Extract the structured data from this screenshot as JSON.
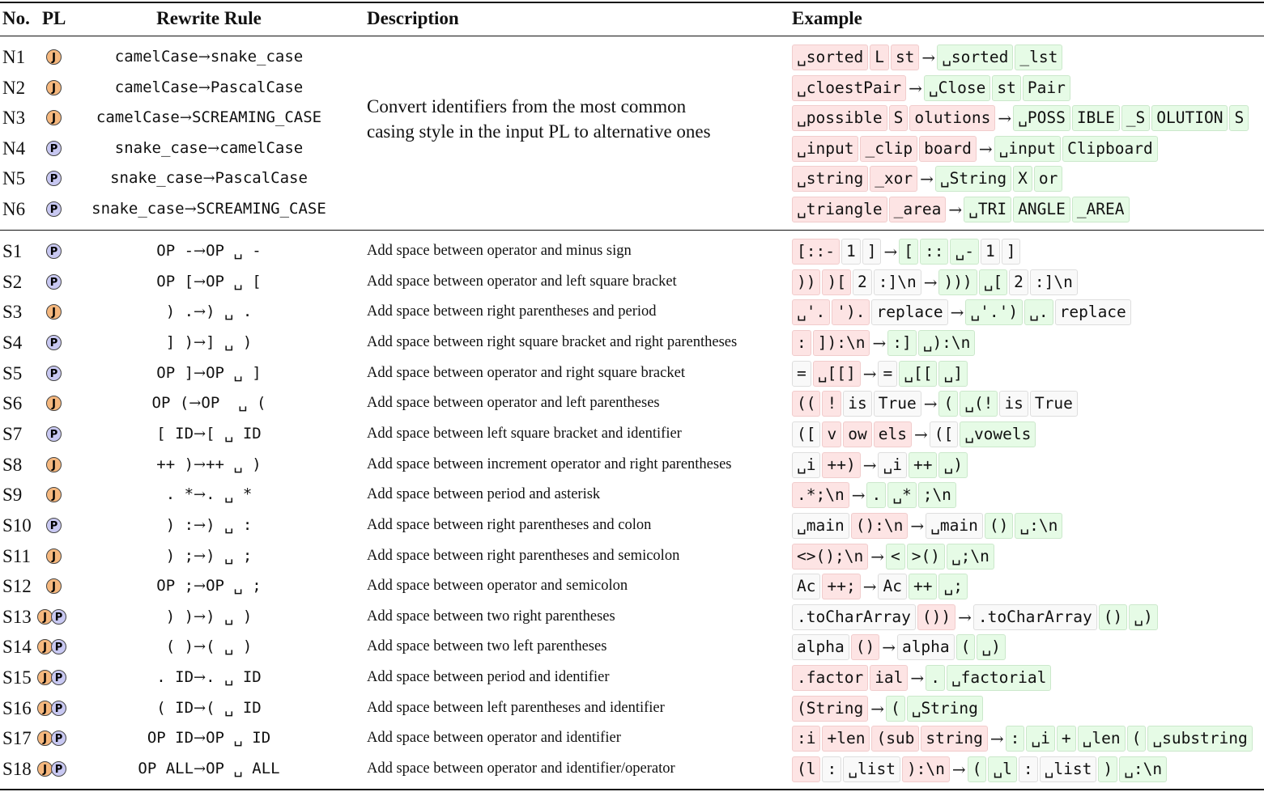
{
  "header": {
    "no": "No.",
    "pl": "PL",
    "rule": "Rewrite Rule",
    "description": "Description",
    "example": "Example"
  },
  "naming_description": "Convert identifiers from the most common casing style in the input PL to alternative ones",
  "naming_description_lines": [
    "Convert identifiers from the most common",
    "casing style in the input PL to alternative ones"
  ],
  "arrow": "→",
  "badges": {
    "J": "J",
    "P": "P",
    "J_color": "#f5b77d",
    "P_color": "#c8c8f2"
  },
  "token_colors": {
    "removed": "#fde4e4",
    "added": "#e6fbe6",
    "unchanged": "#f9f9f9"
  },
  "naming_rules": [
    {
      "no": "N1",
      "pl": [
        "J"
      ],
      "lhs": "camelCase",
      "rhs": "snake_case",
      "before": [
        [
          "r",
          "␣sorted"
        ],
        [
          "r",
          "L"
        ],
        [
          "r",
          "st"
        ]
      ],
      "after": [
        [
          "g",
          "␣sorted"
        ],
        [
          "g",
          "_lst"
        ]
      ]
    },
    {
      "no": "N2",
      "pl": [
        "J"
      ],
      "lhs": "camelCase",
      "rhs": "PascalCase",
      "before": [
        [
          "r",
          "␣cloestPair"
        ]
      ],
      "after": [
        [
          "g",
          "␣Close"
        ],
        [
          "g",
          "st"
        ],
        [
          "g",
          "Pair"
        ]
      ]
    },
    {
      "no": "N3",
      "pl": [
        "J"
      ],
      "lhs": "camelCase",
      "rhs": "SCREAMING_CASE",
      "before": [
        [
          "r",
          "␣possible"
        ],
        [
          "r",
          "S"
        ],
        [
          "r",
          "olutions"
        ]
      ],
      "after": [
        [
          "g",
          "␣POSS"
        ],
        [
          "g",
          "IBLE"
        ],
        [
          "g",
          "_S"
        ],
        [
          "g",
          "OLUTION"
        ],
        [
          "g",
          "S"
        ]
      ]
    },
    {
      "no": "N4",
      "pl": [
        "P"
      ],
      "lhs": "snake_case",
      "rhs": "camelCase",
      "before": [
        [
          "r",
          "␣input"
        ],
        [
          "r",
          "_clip"
        ],
        [
          "r",
          "board"
        ]
      ],
      "after": [
        [
          "g",
          "␣input"
        ],
        [
          "g",
          "Clipboard"
        ]
      ]
    },
    {
      "no": "N5",
      "pl": [
        "P"
      ],
      "lhs": "snake_case",
      "rhs": "PascalCase",
      "before": [
        [
          "r",
          "␣string"
        ],
        [
          "r",
          "_xor"
        ]
      ],
      "after": [
        [
          "g",
          "␣String"
        ],
        [
          "g",
          "X"
        ],
        [
          "g",
          "or"
        ]
      ]
    },
    {
      "no": "N6",
      "pl": [
        "P"
      ],
      "lhs": "snake_case",
      "rhs": "SCREAMING_CASE",
      "before": [
        [
          "r",
          "␣triangle"
        ],
        [
          "r",
          "_area"
        ]
      ],
      "after": [
        [
          "g",
          "␣TRI"
        ],
        [
          "g",
          "ANGLE"
        ],
        [
          "g",
          "_AREA"
        ]
      ]
    }
  ],
  "spacing_rules": [
    {
      "no": "S1",
      "pl": [
        "P"
      ],
      "lhs": "OP -",
      "rhs": "OP ␣ -",
      "desc": "Add space between operator and minus sign",
      "before": [
        [
          "r",
          "[::-"
        ],
        [
          "w",
          "1"
        ],
        [
          "w",
          "]"
        ]
      ],
      "after": [
        [
          "g",
          "["
        ],
        [
          "g",
          "::"
        ],
        [
          "g",
          "␣-"
        ],
        [
          "w",
          "1"
        ],
        [
          "w",
          "]"
        ]
      ]
    },
    {
      "no": "S2",
      "pl": [
        "P"
      ],
      "lhs": "OP [",
      "rhs": "OP ␣ [",
      "desc": "Add space between operator and left square bracket",
      "before": [
        [
          "r",
          "))"
        ],
        [
          "r",
          ")["
        ],
        [
          "w",
          "2"
        ],
        [
          "w",
          ":]\\n"
        ]
      ],
      "after": [
        [
          "g",
          ")))"
        ],
        [
          "g",
          "␣["
        ],
        [
          "w",
          "2"
        ],
        [
          "w",
          ":]\\n"
        ]
      ]
    },
    {
      "no": "S3",
      "pl": [
        "J"
      ],
      "lhs": ") .",
      "rhs": ") ␣ .",
      "desc": "Add space between right parentheses and period",
      "before": [
        [
          "r",
          "␣'."
        ],
        [
          "r",
          "')."
        ],
        [
          "w",
          "replace"
        ]
      ],
      "after": [
        [
          "g",
          "␣'.')"
        ],
        [
          "g",
          "␣."
        ],
        [
          "w",
          "replace"
        ]
      ]
    },
    {
      "no": "S4",
      "pl": [
        "P"
      ],
      "lhs": "] )",
      "rhs": "] ␣ )",
      "desc": "Add space between right square bracket and right parentheses",
      "before": [
        [
          "r",
          ":"
        ],
        [
          "r",
          "]):\\n"
        ]
      ],
      "after": [
        [
          "g",
          ":]"
        ],
        [
          "g",
          "␣):\\n"
        ]
      ]
    },
    {
      "no": "S5",
      "pl": [
        "P"
      ],
      "lhs": "OP ]",
      "rhs": "OP ␣ ]",
      "desc": "Add space between operator and right square bracket",
      "before": [
        [
          "w",
          "="
        ],
        [
          "r",
          "␣[[]"
        ]
      ],
      "after": [
        [
          "w",
          "="
        ],
        [
          "g",
          "␣[["
        ],
        [
          "g",
          "␣]"
        ]
      ]
    },
    {
      "no": "S6",
      "pl": [
        "J"
      ],
      "lhs": "OP (",
      "rhs": "OP  ␣ (",
      "desc": "Add space between operator and left parentheses",
      "before": [
        [
          "r",
          "(("
        ],
        [
          "r",
          "!"
        ],
        [
          "w",
          "is"
        ],
        [
          "w",
          "True"
        ]
      ],
      "after": [
        [
          "g",
          "("
        ],
        [
          "g",
          "␣(!"
        ],
        [
          "w",
          "is"
        ],
        [
          "w",
          "True"
        ]
      ]
    },
    {
      "no": "S7",
      "pl": [
        "P"
      ],
      "lhs": "[ ID",
      "rhs": "[ ␣ ID",
      "desc": "Add space between left square bracket and identifier",
      "before": [
        [
          "w",
          "(["
        ],
        [
          "r",
          "v"
        ],
        [
          "r",
          "ow"
        ],
        [
          "r",
          "els"
        ]
      ],
      "after": [
        [
          "w",
          "(["
        ],
        [
          "g",
          "␣vowels"
        ]
      ]
    },
    {
      "no": "S8",
      "pl": [
        "J"
      ],
      "lhs": "++ )",
      "rhs": "++ ␣ )",
      "desc": "Add space between increment operator and right parentheses",
      "before": [
        [
          "w",
          "␣i"
        ],
        [
          "r",
          "++)"
        ]
      ],
      "after": [
        [
          "w",
          "␣i"
        ],
        [
          "g",
          "++"
        ],
        [
          "g",
          "␣)"
        ]
      ]
    },
    {
      "no": "S9",
      "pl": [
        "J"
      ],
      "lhs": ". *",
      "rhs": ". ␣ *",
      "desc": "Add space between period and asterisk",
      "before": [
        [
          "r",
          ".*;\\n"
        ]
      ],
      "after": [
        [
          "g",
          "."
        ],
        [
          "g",
          "␣*"
        ],
        [
          "g",
          ";\\n"
        ]
      ]
    },
    {
      "no": "S10",
      "pl": [
        "P"
      ],
      "lhs": ") :",
      "rhs": ") ␣ :",
      "desc": "Add space between right parentheses and colon",
      "before": [
        [
          "w",
          "␣main"
        ],
        [
          "r",
          "():\\n"
        ]
      ],
      "after": [
        [
          "w",
          "␣main"
        ],
        [
          "g",
          "()"
        ],
        [
          "g",
          "␣:\\n"
        ]
      ]
    },
    {
      "no": "S11",
      "pl": [
        "J"
      ],
      "lhs": ") ;",
      "rhs": ") ␣ ;",
      "desc": "Add space between right parentheses and semicolon",
      "before": [
        [
          "r",
          "<>();\\n"
        ]
      ],
      "after": [
        [
          "g",
          "<"
        ],
        [
          "g",
          ">()"
        ],
        [
          "g",
          "␣;\\n"
        ]
      ]
    },
    {
      "no": "S12",
      "pl": [
        "J"
      ],
      "lhs": "OP ;",
      "rhs": "OP ␣ ;",
      "desc": "Add space between operator and semicolon",
      "before": [
        [
          "w",
          "Ac"
        ],
        [
          "r",
          "++;"
        ]
      ],
      "after": [
        [
          "w",
          "Ac"
        ],
        [
          "g",
          "++"
        ],
        [
          "g",
          "␣;"
        ]
      ]
    },
    {
      "no": "S13",
      "pl": [
        "J",
        "P"
      ],
      "lhs": ") )",
      "rhs": ") ␣ )",
      "desc": "Add space between two right parentheses",
      "before": [
        [
          "w",
          ".toCharArray"
        ],
        [
          "r",
          "())"
        ]
      ],
      "after": [
        [
          "w",
          ".toCharArray"
        ],
        [
          "g",
          "()"
        ],
        [
          "g",
          "␣)"
        ]
      ]
    },
    {
      "no": "S14",
      "pl": [
        "J",
        "P"
      ],
      "lhs": "( )",
      "rhs": "( ␣ )",
      "desc": "Add space between two left parentheses",
      "before": [
        [
          "w",
          "alpha"
        ],
        [
          "r",
          "()"
        ]
      ],
      "after": [
        [
          "w",
          "alpha"
        ],
        [
          "g",
          "("
        ],
        [
          "g",
          "␣)"
        ]
      ]
    },
    {
      "no": "S15",
      "pl": [
        "J",
        "P"
      ],
      "lhs": ". ID",
      "rhs": ". ␣ ID",
      "desc": "Add space between period and identifier",
      "before": [
        [
          "r",
          ".factor"
        ],
        [
          "r",
          "ial"
        ]
      ],
      "after": [
        [
          "g",
          "."
        ],
        [
          "g",
          "␣factorial"
        ]
      ]
    },
    {
      "no": "S16",
      "pl": [
        "J",
        "P"
      ],
      "lhs": "( ID",
      "rhs": "( ␣ ID",
      "desc": "Add space between left parentheses and identifier",
      "before": [
        [
          "r",
          "(String"
        ]
      ],
      "after": [
        [
          "g",
          "("
        ],
        [
          "g",
          "␣String"
        ]
      ]
    },
    {
      "no": "S17",
      "pl": [
        "J",
        "P"
      ],
      "lhs": "OP ID",
      "rhs": "OP ␣ ID",
      "desc": "Add space between operator and identifier",
      "before": [
        [
          "r",
          ":i"
        ],
        [
          "r",
          "+len"
        ],
        [
          "r",
          "(sub"
        ],
        [
          "r",
          "string"
        ]
      ],
      "after": [
        [
          "g",
          ":"
        ],
        [
          "g",
          "␣i"
        ],
        [
          "g",
          "+"
        ],
        [
          "g",
          "␣len"
        ],
        [
          "g",
          "("
        ],
        [
          "g",
          "␣substring"
        ]
      ]
    },
    {
      "no": "S18",
      "pl": [
        "J",
        "P"
      ],
      "lhs": "OP ALL",
      "rhs": "OP ␣ ALL",
      "desc": "Add space between operator and identifier/operator",
      "before": [
        [
          "r",
          "(l"
        ],
        [
          "w",
          ":"
        ],
        [
          "w",
          "␣list"
        ],
        [
          "r",
          "):\\n"
        ]
      ],
      "after": [
        [
          "g",
          "("
        ],
        [
          "g",
          "␣l"
        ],
        [
          "w",
          ":"
        ],
        [
          "w",
          "␣list"
        ],
        [
          "g",
          ")"
        ],
        [
          "g",
          "␣:\\n"
        ]
      ]
    }
  ]
}
